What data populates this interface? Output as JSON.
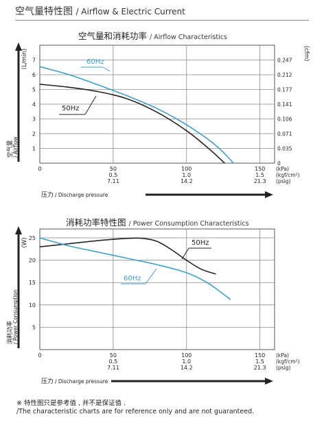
{
  "header": {
    "title_cn": "空气量特性图",
    "title_en": "/ Airflow & Electric Current"
  },
  "notes": {
    "line1": "※ 特性图只是参考值 , 并不是保证值 .",
    "line2": "/The characteristic charts are for reference only and are not guaranteed."
  },
  "chart_data": [
    {
      "type": "line",
      "title_cn": "空气量和消耗功率",
      "title_en": "/ Airflow Characteristics",
      "ylabel_unit": "(L/min)",
      "ylabel_cn": "空气量",
      "ylabel_en": "/ Airflow",
      "y2label_unit": "(cfm)",
      "xlabel_cn": "压力",
      "xlabel_en": "/ Discharge pressure",
      "ylim": [
        0,
        8
      ],
      "xlim": [
        0,
        160
      ],
      "grid": true,
      "yticks": [
        "1",
        "2",
        "3",
        "4",
        "5",
        "6",
        "7"
      ],
      "y2ticks": [
        "0",
        "0.035",
        "0.071",
        "0.106",
        "0.141",
        "0.177",
        "0.212",
        "0.247"
      ],
      "xticks": [
        {
          "kpa": "0",
          "kgf": "",
          "psig": ""
        },
        {
          "kpa": "50",
          "kgf": "0.5",
          "psig": "7.11"
        },
        {
          "kpa": "100",
          "kgf": "1.0",
          "psig": "14.2"
        },
        {
          "kpa": "150",
          "kgf": "1.5",
          "psig": "21.3"
        }
      ],
      "unit_labels": [
        "(kPa)",
        "(kgf/cm²)",
        "(psig)"
      ],
      "series": [
        {
          "name": "60Hz",
          "color": "#3aa0cc",
          "x": [
            0,
            20,
            40,
            60,
            80,
            100,
            120,
            132
          ],
          "y": [
            6.55,
            6.0,
            5.3,
            4.55,
            3.7,
            2.6,
            1.2,
            0.0
          ]
        },
        {
          "name": "50Hz",
          "color": "#222222",
          "x": [
            0,
            20,
            40,
            60,
            80,
            100,
            115,
            126
          ],
          "y": [
            5.35,
            5.15,
            4.85,
            4.35,
            3.45,
            2.2,
            1.0,
            0.0
          ]
        }
      ]
    },
    {
      "type": "line",
      "title_cn": "消耗功率特性图",
      "title_en": "/ Power Consumption Characteristics",
      "ylabel_unit": "(W)",
      "ylabel_cn": "消耗功率",
      "ylabel_en": "/ Power Consumption",
      "xlabel_cn": "压力",
      "xlabel_en": "/ Discharge pressure",
      "ylim": [
        0,
        27
      ],
      "xlim": [
        0,
        160
      ],
      "grid": true,
      "yticks": [
        "5",
        "10",
        "15",
        "20",
        "25"
      ],
      "xticks": [
        {
          "kpa": "0",
          "kgf": "",
          "psig": ""
        },
        {
          "kpa": "50",
          "kgf": "0.5",
          "psig": "7.11"
        },
        {
          "kpa": "100",
          "kgf": "1.0",
          "psig": "14.2"
        },
        {
          "kpa": "150",
          "kgf": "1.5",
          "psig": "21.3"
        }
      ],
      "unit_labels": [
        "(kPa)",
        "(kgf/cm²)",
        "(psig)"
      ],
      "series": [
        {
          "name": "50Hz",
          "color": "#222222",
          "x": [
            0,
            20,
            40,
            60,
            70,
            80,
            90,
            100,
            110,
            120
          ],
          "y": [
            23.0,
            23.7,
            24.4,
            24.9,
            24.9,
            24.2,
            22.3,
            20.0,
            18.0,
            16.9
          ]
        },
        {
          "name": "60Hz",
          "color": "#3aa0cc",
          "x": [
            0,
            20,
            40,
            60,
            80,
            100,
            115,
            130
          ],
          "y": [
            25.0,
            23.2,
            21.8,
            20.4,
            19.0,
            17.2,
            14.8,
            11.2
          ]
        }
      ]
    }
  ]
}
